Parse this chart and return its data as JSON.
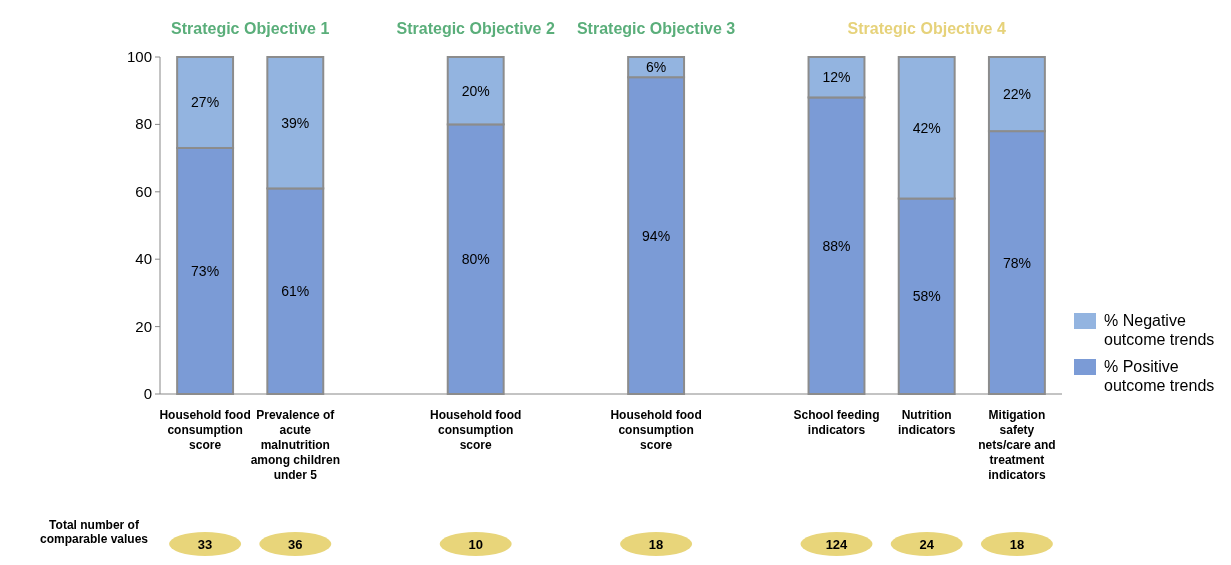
{
  "chart_data": {
    "type": "bar",
    "stacked": true,
    "categories": [
      "Household food consumption score",
      "Prevalence of acute malnutrition among children under 5",
      null,
      "Household food consumption score",
      null,
      "Household food consumption score",
      null,
      "School feeding indicators",
      "Nutrition indicators",
      "Mitigation safety nets/care and treatment indicators"
    ],
    "series": [
      {
        "name": "% Positive outcome trends",
        "color": "#7b9bd6",
        "values": [
          73,
          61,
          null,
          80,
          null,
          94,
          null,
          88,
          58,
          78
        ],
        "value_labels": [
          "73%",
          "61%",
          null,
          "80%",
          null,
          "94%",
          null,
          "88%",
          "58%",
          "78%"
        ]
      },
      {
        "name": "% Negative outcome trends",
        "color": "#93b4e0",
        "values": [
          27,
          39,
          null,
          20,
          null,
          6,
          null,
          12,
          42,
          22
        ],
        "value_labels": [
          "27%",
          "39%",
          null,
          "20%",
          null,
          "6%",
          null,
          "12%",
          "42%",
          "22%"
        ]
      }
    ],
    "ylim": [
      0,
      100
    ],
    "yticks": [
      0,
      20,
      40,
      60,
      80,
      100
    ],
    "grid": false,
    "legend": "right",
    "annotations": [
      "Strategic Objective 1",
      "Strategic Objective 2",
      "Strategic Objective 3",
      "Strategic Objective 4",
      "Total number of comparable values",
      "33",
      "36",
      "10",
      "18",
      "124",
      "24",
      "18"
    ]
  }
}
